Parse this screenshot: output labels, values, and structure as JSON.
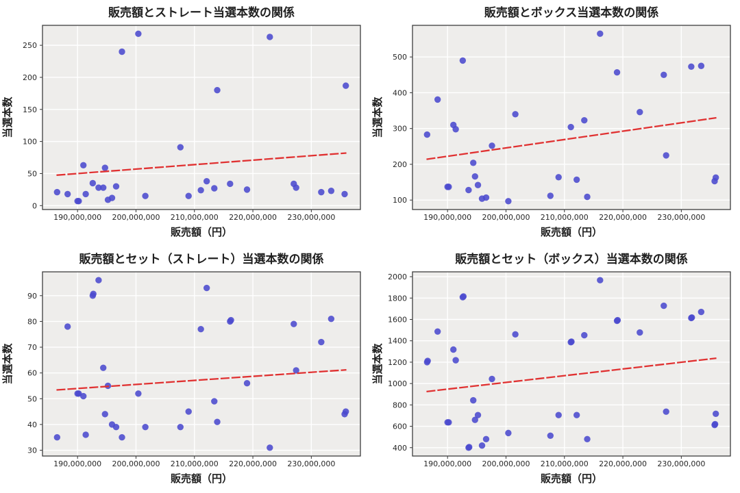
{
  "figure": {
    "rows": 2,
    "cols": 2,
    "background": "#ffffff"
  },
  "style": {
    "plot_bg": "#eeedeb",
    "grid_color": "#ffffff",
    "border_color": "#3c3c3c",
    "tick_color": "#333333",
    "point_color": "#4b4ace",
    "point_opacity": 0.88,
    "trend_color": "#e03131"
  },
  "shared": {
    "xlabel": "販売額（円）",
    "ylabel": "当選本数",
    "x_unit": "yen",
    "x_million_yen": [
      186.5,
      188.3,
      190.0,
      190.2,
      191.0,
      191.4,
      192.6,
      193.6,
      194.4,
      194.7,
      195.2,
      195.9,
      196.6,
      197.6,
      200.4,
      201.6,
      207.6,
      209.0,
      211.1,
      212.1,
      213.4,
      213.9,
      216.1,
      219.0,
      222.9,
      227.0,
      227.4,
      231.7,
      233.4,
      235.7,
      235.9
    ],
    "xlim_million_yen": [
      184.0,
      238.4
    ],
    "xticks_million_yen": [
      190,
      200,
      210,
      220,
      230
    ],
    "xtick_labels": [
      "190,000,000",
      "200,000,000",
      "210,000,000",
      "220,000,000",
      "230,000,000"
    ]
  },
  "chart_data": [
    {
      "type": "scatter",
      "title": "販売額とストレート当選本数の関係",
      "xlabel": "販売額（円）",
      "ylabel": "当選本数",
      "ylim": [
        -6.1,
        281.1
      ],
      "yticks": [
        0,
        50,
        100,
        150,
        200,
        250
      ],
      "y": [
        21,
        18,
        7,
        7,
        63,
        18,
        35,
        28,
        28,
        59,
        9,
        12,
        30,
        240,
        268,
        15,
        91,
        15,
        24,
        38,
        27,
        180,
        34,
        25,
        263,
        34,
        28,
        21,
        23,
        18,
        187
      ],
      "extra_points": [],
      "trend": {
        "x": [
          186.4,
          236.0
        ],
        "y": [
          47.5,
          82
        ]
      }
    },
    {
      "type": "scatter",
      "title": "販売額とボックス当選本数の関係",
      "xlabel": "販売額（円）",
      "ylabel": "当選本数",
      "ylim": [
        73.6,
        588.4
      ],
      "yticks": [
        100,
        200,
        300,
        400,
        500
      ],
      "y": [
        283,
        381,
        137,
        137,
        310,
        298,
        490,
        128,
        204,
        166,
        142,
        104,
        107,
        252,
        97,
        340,
        112,
        164,
        304,
        157,
        323,
        109,
        565,
        457,
        346,
        450,
        225,
        473,
        475,
        153,
        163
      ],
      "extra_points": [],
      "trend": {
        "x": [
          186.4,
          236.0
        ],
        "y": [
          214,
          330
        ]
      }
    },
    {
      "type": "scatter",
      "title": "販売額とセット（ストレート）当選本数の関係",
      "xlabel": "販売額（円）",
      "ylabel": "当選本数",
      "ylim": [
        27.75,
        99.25
      ],
      "yticks": [
        30,
        40,
        50,
        60,
        70,
        80,
        90
      ],
      "y": [
        35,
        78,
        52,
        52,
        51,
        36,
        90,
        96,
        62,
        44,
        55,
        40,
        39,
        35,
        52,
        39,
        39,
        45,
        77,
        93,
        49,
        41,
        80,
        56,
        31,
        79,
        61,
        72,
        81,
        44,
        45
      ],
      "extra_points": [
        [
          192.7,
          90.7
        ],
        [
          216.25,
          80.5
        ]
      ],
      "trend": {
        "x": [
          186.4,
          236.0
        ],
        "y": [
          53.4,
          61.2
        ]
      }
    },
    {
      "type": "scatter",
      "title": "販売額とセット（ボックス）当選本数の関係",
      "xlabel": "販売額（円）",
      "ylabel": "当選本数",
      "ylim": [
        321.6,
        2045.4
      ],
      "yticks": [
        400,
        600,
        800,
        1000,
        1200,
        1400,
        1600,
        1800,
        2000
      ],
      "y": [
        1200,
        1487,
        637,
        637,
        1318,
        1218,
        1808,
        400,
        843,
        660,
        705,
        420,
        480,
        1043,
        537,
        1460,
        512,
        705,
        1387,
        705,
        1452,
        480,
        1967,
        1587,
        1478,
        1728,
        737,
        1613,
        1670,
        612,
        717
      ],
      "extra_points": [
        [
          186.6,
          1212
        ],
        [
          192.72,
          1815
        ],
        [
          193.7,
          405
        ],
        [
          211.2,
          1392
        ],
        [
          219.1,
          1593
        ],
        [
          231.8,
          1618
        ],
        [
          235.78,
          620
        ]
      ],
      "trend": {
        "x": [
          186.4,
          236.0
        ],
        "y": [
          925,
          1237
        ]
      }
    }
  ]
}
